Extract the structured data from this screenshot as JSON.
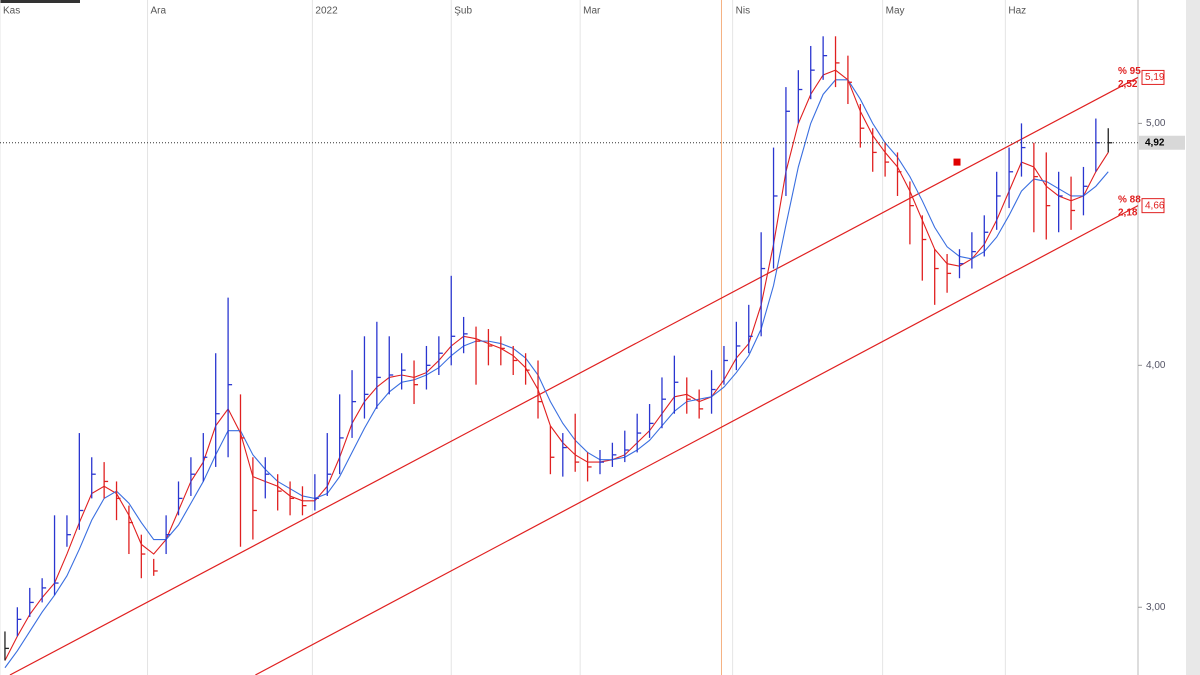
{
  "chart_data": {
    "type": "ohlc",
    "x": [
      0,
      1,
      2,
      3,
      4,
      5,
      6,
      7,
      8,
      9,
      10,
      11,
      12,
      13,
      14,
      15,
      16,
      17,
      18,
      19,
      20,
      21,
      22,
      23,
      24,
      25,
      26,
      27,
      28,
      29,
      30,
      31,
      32,
      33,
      34,
      35,
      36,
      37,
      38,
      39,
      40,
      41,
      42,
      43,
      44,
      45,
      46,
      47,
      48,
      49,
      50,
      51,
      52,
      53,
      54,
      55,
      56,
      57,
      58,
      59,
      60,
      61,
      62,
      63,
      64,
      65,
      66,
      67,
      68,
      69,
      70,
      71,
      72,
      73,
      74,
      75,
      76,
      77,
      78,
      79,
      80,
      81,
      82,
      83,
      84,
      85,
      86,
      87,
      88,
      89
    ],
    "bars": {
      "up_color": "#2a36d0",
      "down_color": "#e02020",
      "flat_color": "#222222",
      "high": [
        2.9,
        3.0,
        3.08,
        3.12,
        3.38,
        3.38,
        3.72,
        3.62,
        3.6,
        3.52,
        3.42,
        3.3,
        3.2,
        3.38,
        3.52,
        3.62,
        3.72,
        4.05,
        4.28,
        3.88,
        3.62,
        3.62,
        3.55,
        3.52,
        3.5,
        3.55,
        3.72,
        3.88,
        3.98,
        4.12,
        4.18,
        4.12,
        4.05,
        4.02,
        4.08,
        4.12,
        4.37,
        4.2,
        4.16,
        4.15,
        4.12,
        4.08,
        4.05,
        4.02,
        3.75,
        3.72,
        3.8,
        3.64,
        3.65,
        3.68,
        3.73,
        3.8,
        3.84,
        3.95,
        4.04,
        3.95,
        3.9,
        3.98,
        4.08,
        4.18,
        4.25,
        4.55,
        4.9,
        5.15,
        5.22,
        5.32,
        5.36,
        5.36,
        5.28,
        5.08,
        4.98,
        4.92,
        4.88,
        4.76,
        4.62,
        4.48,
        4.46,
        4.48,
        4.55,
        4.62,
        4.8,
        4.9,
        5.0,
        4.92,
        4.88,
        4.8,
        4.78,
        4.82,
        5.02,
        4.98
      ],
      "low": [
        2.78,
        2.88,
        2.96,
        3.02,
        3.05,
        3.25,
        3.32,
        3.45,
        3.45,
        3.36,
        3.22,
        3.12,
        3.13,
        3.22,
        3.38,
        3.46,
        3.52,
        3.58,
        3.62,
        3.25,
        3.28,
        3.45,
        3.4,
        3.38,
        3.38,
        3.4,
        3.46,
        3.55,
        3.7,
        3.78,
        3.82,
        3.88,
        3.9,
        3.84,
        3.9,
        3.96,
        4.0,
        4.05,
        3.92,
        4.0,
        4.0,
        3.96,
        3.92,
        3.78,
        3.55,
        3.54,
        3.56,
        3.52,
        3.55,
        3.58,
        3.6,
        3.64,
        3.7,
        3.74,
        3.8,
        3.8,
        3.78,
        3.8,
        3.92,
        3.98,
        4.05,
        4.12,
        4.4,
        4.7,
        5.0,
        5.1,
        5.18,
        5.15,
        5.08,
        4.9,
        4.8,
        4.78,
        4.7,
        4.5,
        4.35,
        4.25,
        4.3,
        4.36,
        4.4,
        4.45,
        4.56,
        4.65,
        4.78,
        4.55,
        4.52,
        4.55,
        4.56,
        4.62,
        4.8,
        4.88
      ],
      "close": [
        2.83,
        2.95,
        3.02,
        3.08,
        3.1,
        3.3,
        3.4,
        3.55,
        3.52,
        3.45,
        3.35,
        3.22,
        3.15,
        3.3,
        3.45,
        3.55,
        3.62,
        3.8,
        3.92,
        3.7,
        3.4,
        3.55,
        3.48,
        3.45,
        3.42,
        3.45,
        3.55,
        3.7,
        3.85,
        3.88,
        3.95,
        3.96,
        3.98,
        3.92,
        4.0,
        4.05,
        4.12,
        4.13,
        4.1,
        4.08,
        4.07,
        4.02,
        3.98,
        3.85,
        3.62,
        3.66,
        3.6,
        3.58,
        3.6,
        3.63,
        3.65,
        3.72,
        3.76,
        3.86,
        3.93,
        3.86,
        3.82,
        3.9,
        4.02,
        4.08,
        4.12,
        4.4,
        4.7,
        5.05,
        5.14,
        5.22,
        5.28,
        5.25,
        5.17,
        4.98,
        4.88,
        4.84,
        4.8,
        4.66,
        4.52,
        4.4,
        4.38,
        4.42,
        4.47,
        4.55,
        4.7,
        4.8,
        4.9,
        4.78,
        4.66,
        4.7,
        4.64,
        4.74,
        4.92,
        4.92
      ]
    },
    "lines": [
      {
        "color": "#e02020",
        "values": [
          2.78,
          2.88,
          2.97,
          3.04,
          3.1,
          3.22,
          3.35,
          3.47,
          3.5,
          3.47,
          3.38,
          3.26,
          3.22,
          3.28,
          3.4,
          3.52,
          3.6,
          3.75,
          3.82,
          3.72,
          3.54,
          3.52,
          3.5,
          3.46,
          3.44,
          3.44,
          3.5,
          3.62,
          3.76,
          3.85,
          3.91,
          3.95,
          3.96,
          3.95,
          3.97,
          4.02,
          4.08,
          4.12,
          4.11,
          4.09,
          4.07,
          4.04,
          3.99,
          3.9,
          3.75,
          3.68,
          3.63,
          3.6,
          3.6,
          3.61,
          3.63,
          3.68,
          3.73,
          3.8,
          3.87,
          3.88,
          3.85,
          3.87,
          3.94,
          4.03,
          4.09,
          4.25,
          4.5,
          4.8,
          5.0,
          5.12,
          5.2,
          5.22,
          5.18,
          5.05,
          4.95,
          4.88,
          4.82,
          4.72,
          4.6,
          4.48,
          4.42,
          4.41,
          4.44,
          4.5,
          4.6,
          4.72,
          4.84,
          4.82,
          4.74,
          4.7,
          4.68,
          4.7,
          4.8,
          4.88
        ]
      },
      {
        "color": "#3a6fe0",
        "values": [
          2.75,
          2.82,
          2.9,
          2.98,
          3.05,
          3.13,
          3.24,
          3.36,
          3.45,
          3.48,
          3.43,
          3.35,
          3.28,
          3.28,
          3.34,
          3.43,
          3.52,
          3.63,
          3.73,
          3.73,
          3.63,
          3.57,
          3.52,
          3.49,
          3.46,
          3.45,
          3.47,
          3.54,
          3.64,
          3.74,
          3.83,
          3.89,
          3.93,
          3.94,
          3.96,
          3.99,
          4.04,
          4.08,
          4.1,
          4.1,
          4.09,
          4.07,
          4.03,
          3.96,
          3.85,
          3.76,
          3.69,
          3.64,
          3.61,
          3.61,
          3.62,
          3.65,
          3.69,
          3.75,
          3.81,
          3.85,
          3.86,
          3.87,
          3.91,
          3.97,
          4.04,
          4.15,
          4.33,
          4.58,
          4.82,
          5.0,
          5.12,
          5.18,
          5.18,
          5.1,
          5.0,
          4.92,
          4.86,
          4.78,
          4.68,
          4.57,
          4.49,
          4.45,
          4.44,
          4.47,
          4.53,
          4.62,
          4.72,
          4.77,
          4.76,
          4.73,
          4.7,
          4.7,
          4.74,
          4.8
        ]
      }
    ],
    "xlim": [
      -0.4,
      91.4
    ],
    "ylim": [
      2.72,
      5.51
    ],
    "xticks": [
      {
        "value": -0.4,
        "label": "Kas"
      },
      {
        "value": 11.5,
        "label": "Ara"
      },
      {
        "value": 24.8,
        "label": "2022"
      },
      {
        "value": 36,
        "label": "Şub"
      },
      {
        "value": 46.4,
        "label": "Mar"
      },
      {
        "value": 58.7,
        "label": "Nis"
      },
      {
        "value": 70.8,
        "label": "May"
      },
      {
        "value": 80.7,
        "label": "Haz"
      }
    ],
    "yticks": [
      {
        "value": 3,
        "label": "3,00"
      },
      {
        "value": 4,
        "label": "4,00"
      },
      {
        "value": 5,
        "label": "5,00"
      }
    ],
    "xgrid": true,
    "trendlines": [
      {
        "color": "#e02020",
        "x": [
          0.4,
          91.4
        ],
        "y": [
          2.72,
          5.19
        ],
        "percent_label": "% 95",
        "width_label": "2,52",
        "end_label": "5,19"
      },
      {
        "color": "#e02020",
        "x": [
          20.2,
          91.4
        ],
        "y": [
          2.72,
          4.66
        ],
        "percent_label": "% 88",
        "width_label": "2,18",
        "end_label": "4,66"
      }
    ],
    "last_price": {
      "value": 4.92,
      "label": "4,92"
    },
    "marker": {
      "x": 76.8,
      "y": 4.84,
      "color": "#e00000"
    },
    "event_line": {
      "x": 57.8,
      "color": "#f5b080"
    }
  }
}
